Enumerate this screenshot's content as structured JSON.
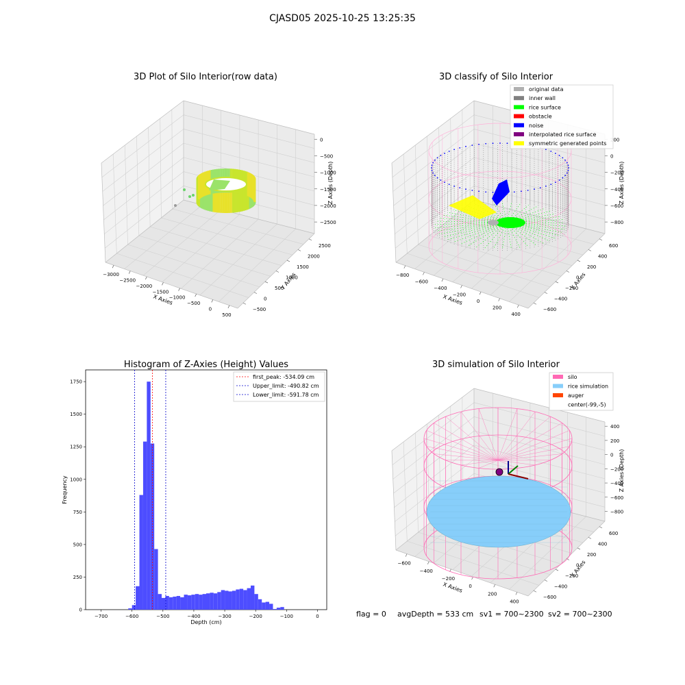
{
  "figure": {
    "suptitle": "CJASD05 2025-10-25 13:25:35",
    "status": {
      "flag": "flag = 0",
      "avg_depth": "avgDepth = 533 cm",
      "sv1": "sv1 = 700~2300",
      "sv2": "sv2 = 700~2300"
    }
  },
  "colors": {
    "histogram_bar": "#4d4dff",
    "first_peak": "#ff0000",
    "limits": "#0000cc",
    "original_data": "#b0b0b0",
    "inner_wall": "#808080",
    "rice_surface": "#00ff00",
    "obstacle": "#ff0000",
    "noise": "#0000ff",
    "interpolated": "#800080",
    "symmetric": "#ffff00",
    "silo": "#ff69b4",
    "rice_simulation": "#87cefa",
    "auger": "#ff4500",
    "raw_colormap": [
      "#9be36a",
      "#c8e52d",
      "#e8e12a"
    ]
  },
  "chart_data": [
    {
      "type": "scatter",
      "title": "3D Plot of Silo Interior(row data)",
      "projection": "3d",
      "xlabel": "X Axies",
      "ylabel": "Y Axies",
      "zlabel": "Z Axies (Depth)",
      "xticks": [
        "−3000",
        "−2500",
        "−2000",
        "−1500",
        "−1000",
        "−500",
        "0",
        "500"
      ],
      "yticks": [
        "−500",
        "0",
        "500",
        "1000",
        "1500",
        "2000",
        "2500"
      ],
      "zticks": [
        "0",
        "−500",
        "−1000",
        "−1500",
        "−2000",
        "−2500"
      ],
      "xlim": [
        -3000,
        500
      ],
      "ylim": [
        -500,
        2500
      ],
      "zlim": [
        -2500,
        0
      ],
      "note": "dense ring of points colored by depth (viridis-like greens to yellows)"
    },
    {
      "type": "scatter",
      "title": "3D classify of Silo Interior",
      "projection": "3d",
      "xlabel": "X Axies",
      "ylabel": "Y Axies",
      "zlabel": "Z Axies (Depth)",
      "xticks": [
        "−800",
        "−600",
        "−400",
        "−200",
        "0",
        "200",
        "400"
      ],
      "yticks": [
        "−600",
        "−400",
        "−200",
        "0",
        "200",
        "400",
        "600"
      ],
      "zticks": [
        "200",
        "0",
        "−200",
        "−400",
        "−600",
        "−800"
      ],
      "legend_position": "top-right",
      "legend": [
        {
          "label": "original data",
          "color": "#b0b0b0"
        },
        {
          "label": "inner wall",
          "color": "#808080"
        },
        {
          "label": "rice surface",
          "color": "#00ff00"
        },
        {
          "label": "obstacle",
          "color": "#ff0000"
        },
        {
          "label": "noise",
          "color": "#0000ff"
        },
        {
          "label": "interpolated rice surface",
          "color": "#800080"
        },
        {
          "label": "symmetric generated points",
          "color": "#ffff00"
        }
      ]
    },
    {
      "type": "bar",
      "title": "Histogram of Z-Axies (Height) Values",
      "xlabel": "Depth (cm)",
      "ylabel": "Frequency",
      "xlim": [
        -750,
        30
      ],
      "ylim": [
        0,
        1840
      ],
      "xticks": [
        -700,
        -600,
        -500,
        -400,
        -300,
        -200,
        -100,
        0
      ],
      "yticks": [
        0,
        250,
        500,
        750,
        1000,
        1250,
        1500,
        1750
      ],
      "bin_width": 12,
      "bins": [
        {
          "x0": -612,
          "value": 10
        },
        {
          "x0": -600,
          "value": 35
        },
        {
          "x0": -588,
          "value": 180
        },
        {
          "x0": -576,
          "value": 880
        },
        {
          "x0": -564,
          "value": 1290
        },
        {
          "x0": -552,
          "value": 1750
        },
        {
          "x0": -540,
          "value": 1275
        },
        {
          "x0": -528,
          "value": 465
        },
        {
          "x0": -516,
          "value": 120
        },
        {
          "x0": -504,
          "value": 90
        },
        {
          "x0": -492,
          "value": 105
        },
        {
          "x0": -480,
          "value": 95
        },
        {
          "x0": -468,
          "value": 100
        },
        {
          "x0": -456,
          "value": 105
        },
        {
          "x0": -444,
          "value": 95
        },
        {
          "x0": -432,
          "value": 115
        },
        {
          "x0": -420,
          "value": 110
        },
        {
          "x0": -408,
          "value": 115
        },
        {
          "x0": -396,
          "value": 120
        },
        {
          "x0": -384,
          "value": 115
        },
        {
          "x0": -372,
          "value": 120
        },
        {
          "x0": -360,
          "value": 125
        },
        {
          "x0": -348,
          "value": 130
        },
        {
          "x0": -336,
          "value": 125
        },
        {
          "x0": -324,
          "value": 135
        },
        {
          "x0": -312,
          "value": 150
        },
        {
          "x0": -300,
          "value": 145
        },
        {
          "x0": -288,
          "value": 140
        },
        {
          "x0": -276,
          "value": 145
        },
        {
          "x0": -264,
          "value": 155
        },
        {
          "x0": -252,
          "value": 160
        },
        {
          "x0": -240,
          "value": 150
        },
        {
          "x0": -228,
          "value": 165
        },
        {
          "x0": -216,
          "value": 185
        },
        {
          "x0": -204,
          "value": 120
        },
        {
          "x0": -192,
          "value": 80
        },
        {
          "x0": -180,
          "value": 55
        },
        {
          "x0": -168,
          "value": 60
        },
        {
          "x0": -156,
          "value": 45
        },
        {
          "x0": -144,
          "value": 5
        },
        {
          "x0": -132,
          "value": 15
        },
        {
          "x0": -120,
          "value": 20
        }
      ],
      "lines": [
        {
          "label": "first_peak: -534.09 cm",
          "x": -534.09,
          "color": "#ff0000"
        },
        {
          "label": "Upper_limit: -490.82 cm",
          "x": -490.82,
          "color": "#0000cc"
        },
        {
          "label": "Lower_limit: -591.78 cm",
          "x": -591.78,
          "color": "#0000cc"
        }
      ],
      "legend_position": "top-right"
    },
    {
      "type": "scatter",
      "title": "3D simulation of Silo Interior",
      "projection": "3d",
      "xlabel": "X Axies",
      "ylabel": "Y Axies",
      "zlabel": "Z Axies (Depth)",
      "xticks": [
        "−600",
        "−400",
        "−200",
        "0",
        "200",
        "400"
      ],
      "yticks": [
        "−600",
        "−400",
        "−200",
        "0",
        "200",
        "400",
        "600"
      ],
      "zticks": [
        "400",
        "200",
        "0",
        "−200",
        "−400",
        "−600",
        "−800"
      ],
      "legend_position": "top-right",
      "legend": [
        {
          "label": "silo",
          "color": "#ff69b4"
        },
        {
          "label": "rice simulation",
          "color": "#87cefa"
        },
        {
          "label": "auger",
          "color": "#ff4500"
        },
        {
          "label": "center(-99,-5)",
          "color": "none"
        }
      ]
    }
  ]
}
